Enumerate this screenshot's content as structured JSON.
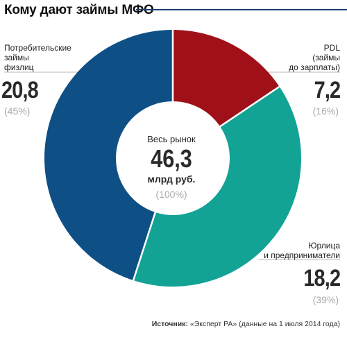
{
  "header": {
    "title": "Кому дают займы МФО"
  },
  "chart_data": {
    "type": "pie",
    "title": "Кому дают займы МФО",
    "unit": "млрд руб.",
    "total": {
      "label": "Весь рынок",
      "value": "46,3",
      "unit": "млрд руб.",
      "percent": "(100%)"
    },
    "slices": [
      {
        "label": "PDL (займы до зарплаты)",
        "label_lines": [
          "PDL",
          "(займы",
          "до зарплаты)"
        ],
        "value": 7.2,
        "value_text": "7,2",
        "percent": "(16%)",
        "color": "#a01019"
      },
      {
        "label": "Юрлица и предприниматели",
        "label_lines": [
          "Юрлица",
          "и предприниматели"
        ],
        "value": 18.2,
        "value_text": "18,2",
        "percent": "(39%)",
        "color": "#12a395"
      },
      {
        "label": "Потребительские займы физлиц",
        "label_lines": [
          "Потребительские",
          "займы",
          "физлиц"
        ],
        "value": 20.8,
        "value_text": "20,8",
        "percent": "(45%)",
        "color": "#0e4f86"
      }
    ]
  },
  "source": {
    "label": "Источник:",
    "text": "«Эксперт РА» (данные на 1 июля 2014 года)"
  }
}
